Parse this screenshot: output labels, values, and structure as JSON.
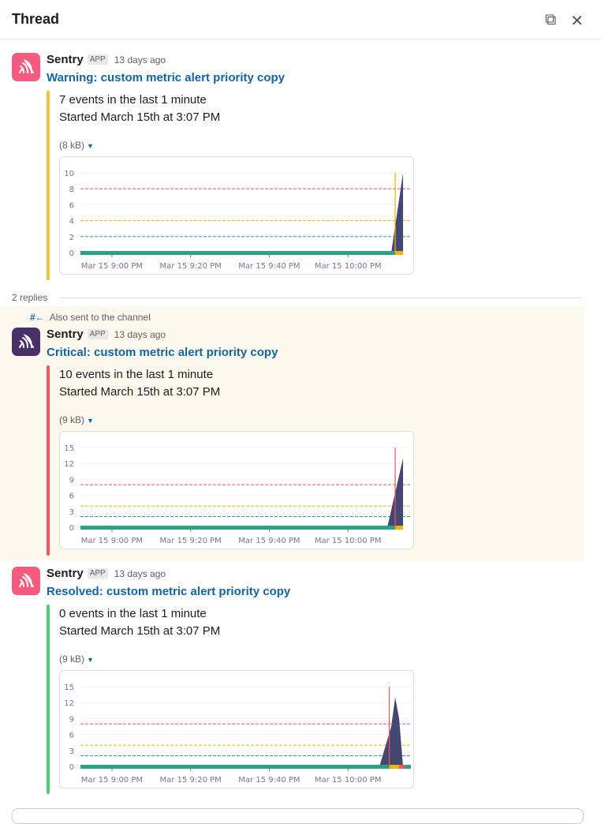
{
  "header": {
    "title": "Thread",
    "icons": [
      "new-window-icon",
      "close-icon"
    ]
  },
  "thread": {
    "replies_label": "2 replies",
    "also_sent": "Also sent to the channel"
  },
  "messages": [
    {
      "sender": "Sentry",
      "badge": "APP",
      "time": "13 days ago",
      "title": "Warning: custom metric alert priority copy",
      "line1": "7 events in the last 1 minute",
      "line2": "Started March 15th at 3:07 PM",
      "size": "(8 kB)",
      "status_color": "#f6c23e",
      "avatar_color": "#f55a7f"
    },
    {
      "sender": "Sentry",
      "badge": "APP",
      "time": "13 days ago",
      "title": "Critical: custom metric alert priority copy",
      "line1": "10 events in the last 1 minute",
      "line2": "Started March 15th at 3:07 PM",
      "size": "(9 kB)",
      "status_color": "#f55459",
      "avatar_color": "#4a2f6b"
    },
    {
      "sender": "Sentry",
      "badge": "APP",
      "time": "13 days ago",
      "title": "Resolved: custom metric alert priority copy",
      "line1": "0 events in the last 1 minute",
      "line2": "Started March 15th at 3:07 PM",
      "size": "(9 kB)",
      "status_color": "#4fce72",
      "avatar_color": "#f55a7f"
    }
  ],
  "chart_data": [
    {
      "type": "area",
      "xlim": [
        "8:52 PM",
        "10:16 PM"
      ],
      "ylim": [
        0,
        10
      ],
      "yticks": [
        0,
        2,
        4,
        6,
        8,
        10
      ],
      "xticks": [
        "Mar 15 9:00 PM",
        "Mar 15 9:20 PM",
        "Mar 15 9:40 PM",
        "Mar 15 10:00 PM"
      ],
      "thresholds": [
        {
          "value": 8,
          "color": "#f55459"
        },
        {
          "value": 4,
          "color": "#f0b400"
        },
        {
          "value": 2,
          "color": "#2ba185"
        }
      ],
      "series": [
        [
          "8:52",
          0
        ],
        [
          "10:11",
          0
        ],
        [
          "10:14",
          10
        ]
      ],
      "marker": {
        "time": "10:12",
        "color": "#f0b400"
      },
      "status": [
        {
          "from": "8:52",
          "to": "10:12",
          "color": "#2ba185"
        },
        {
          "from": "10:12",
          "to": "10:14",
          "color": "#f0b400"
        }
      ],
      "area_color": "#444674",
      "grid": true
    },
    {
      "type": "area",
      "xlim": [
        "8:52 PM",
        "10:16 PM"
      ],
      "ylim": [
        0,
        15
      ],
      "yticks": [
        0,
        3,
        6,
        9,
        12,
        15
      ],
      "xticks": [
        "Mar 15 9:00 PM",
        "Mar 15 9:20 PM",
        "Mar 15 9:40 PM",
        "Mar 15 10:00 PM"
      ],
      "thresholds": [
        {
          "value": 8,
          "color": "#f55459"
        },
        {
          "value": 4,
          "color": "#f0b400"
        },
        {
          "value": 2,
          "color": "#2ba185"
        }
      ],
      "series": [
        [
          "8:52",
          0
        ],
        [
          "10:10",
          0
        ],
        [
          "10:14",
          13
        ]
      ],
      "marker": {
        "time": "10:12",
        "color": "#f55459"
      },
      "status": [
        {
          "from": "8:52",
          "to": "10:12",
          "color": "#2ba185"
        },
        {
          "from": "10:12",
          "to": "10:14",
          "color": "#f0b400"
        }
      ],
      "area_color": "#444674",
      "grid": true
    },
    {
      "type": "area",
      "xlim": [
        "8:52 PM",
        "10:16 PM"
      ],
      "ylim": [
        0,
        15
      ],
      "yticks": [
        0,
        3,
        6,
        9,
        12,
        15
      ],
      "xticks": [
        "Mar 15 9:00 PM",
        "Mar 15 9:20 PM",
        "Mar 15 9:40 PM",
        "Mar 15 10:00 PM"
      ],
      "thresholds": [
        {
          "value": 8,
          "color": "#f55459"
        },
        {
          "value": 4,
          "color": "#f0b400"
        },
        {
          "value": 2,
          "color": "#2ba185"
        }
      ],
      "series": [
        [
          "8:52",
          0
        ],
        [
          "10:08",
          0
        ],
        [
          "10:11",
          7.5
        ],
        [
          "10:12",
          13
        ],
        [
          "10:13",
          9
        ],
        [
          "10:14",
          0
        ],
        [
          "10:16",
          0
        ]
      ],
      "marker": {
        "time": "10:10.5",
        "color": "#f55459"
      },
      "status": [
        {
          "from": "8:52",
          "to": "10:10.5",
          "color": "#2ba185"
        },
        {
          "from": "10:10.5",
          "to": "10:13",
          "color": "#f0b400"
        },
        {
          "from": "10:13",
          "to": "10:14.5",
          "color": "#f55459"
        },
        {
          "from": "10:14.5",
          "to": "10:16",
          "color": "#2ba185"
        }
      ],
      "area_color": "#444674",
      "grid": true
    }
  ]
}
